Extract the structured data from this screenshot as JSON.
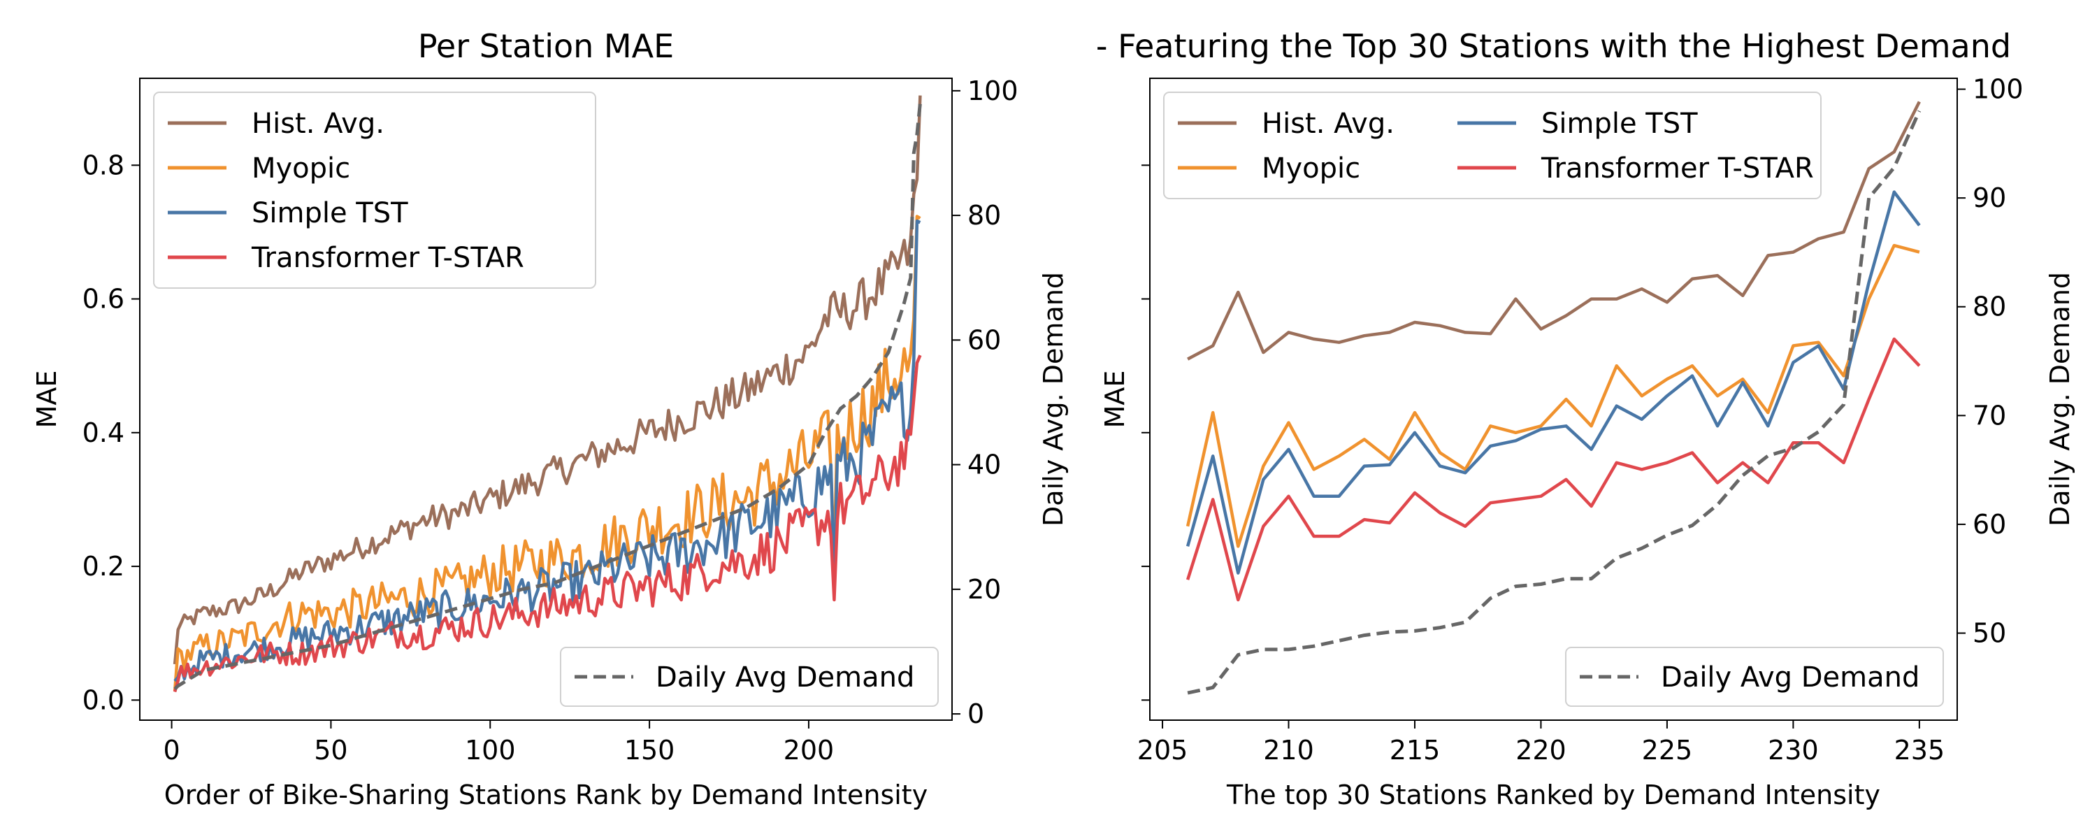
{
  "chart_data": [
    {
      "type": "line",
      "title": "Per Station MAE",
      "xlabel": "Order of Bike-Sharing Stations Rank by Demand Intensity",
      "ylabel": "MAE",
      "ylabel_right": "Daily Avg. Demand",
      "xlim": [
        -10,
        245
      ],
      "ylim": [
        -0.03,
        0.93
      ],
      "ylim_right": [
        -1,
        102
      ],
      "xticks": [
        0,
        50,
        100,
        150,
        200
      ],
      "xtick_labels": [
        "0",
        "50",
        "100",
        "150",
        "200"
      ],
      "yticks": [
        0.0,
        0.2,
        0.4,
        0.6,
        0.8
      ],
      "ytick_labels": [
        "0.0",
        "0.2",
        "0.4",
        "0.6",
        "0.8"
      ],
      "yticks_right": [
        0,
        20,
        40,
        60,
        80,
        100
      ],
      "ytick_labels_right": [
        "0",
        "20",
        "40",
        "60",
        "80",
        "100"
      ],
      "legend": {
        "position": "top-left",
        "columns": 1
      },
      "legend_right": {
        "position": "bottom-right"
      },
      "anchors": {
        "x": [
          1,
          2,
          10,
          20,
          30,
          40,
          50,
          60,
          70,
          80,
          90,
          100,
          110,
          120,
          130,
          140,
          150,
          160,
          170,
          180,
          190,
          200,
          205,
          210,
          215,
          220,
          225,
          230,
          232,
          233,
          234,
          235
        ],
        "series": [
          {
            "name": "Hist. Avg.",
            "color": "#9b6f5a",
            "noise": 0.012,
            "values": [
              0.05,
              0.11,
              0.13,
              0.14,
              0.16,
              0.19,
              0.21,
              0.23,
              0.25,
              0.27,
              0.28,
              0.3,
              0.32,
              0.34,
              0.36,
              0.38,
              0.4,
              0.42,
              0.44,
              0.46,
              0.49,
              0.52,
              0.57,
              0.58,
              0.59,
              0.61,
              0.63,
              0.66,
              0.67,
              0.75,
              0.77,
              0.9
            ]
          },
          {
            "name": "Myopic",
            "color": "#f0922e",
            "noise": 0.02,
            "values": [
              0.03,
              0.06,
              0.08,
              0.09,
              0.11,
              0.13,
              0.13,
              0.14,
              0.15,
              0.16,
              0.17,
              0.19,
              0.2,
              0.21,
              0.22,
              0.24,
              0.26,
              0.27,
              0.29,
              0.3,
              0.33,
              0.36,
              0.38,
              0.39,
              0.42,
              0.44,
              0.48,
              0.5,
              0.49,
              0.55,
              0.7,
              0.67
            ]
          },
          {
            "name": "Simple TST",
            "color": "#4876a6",
            "noise": 0.016,
            "values": [
              0.02,
              0.04,
              0.06,
              0.07,
              0.08,
              0.09,
              0.1,
              0.11,
              0.12,
              0.13,
              0.14,
              0.15,
              0.16,
              0.17,
              0.18,
              0.2,
              0.21,
              0.22,
              0.24,
              0.26,
              0.28,
              0.31,
              0.33,
              0.35,
              0.36,
              0.39,
              0.43,
              0.44,
              0.43,
              0.51,
              0.76,
              0.71
            ]
          },
          {
            "name": "Transformer T-STAR",
            "color": "#e0474c",
            "noise": 0.014,
            "values": [
              0.02,
              0.04,
              0.05,
              0.06,
              0.07,
              0.07,
              0.08,
              0.09,
              0.1,
              0.1,
              0.11,
              0.12,
              0.13,
              0.14,
              0.15,
              0.16,
              0.17,
              0.18,
              0.2,
              0.21,
              0.23,
              0.26,
              0.27,
              0.29,
              0.3,
              0.32,
              0.34,
              0.37,
              0.36,
              0.44,
              0.54,
              0.49
            ]
          },
          {
            "name": "Daily Avg Demand",
            "color": "#666666",
            "dashed": true,
            "axis": "right",
            "noise": 0,
            "values": [
              4,
              4.5,
              7,
              8,
              9,
              10,
              11,
              12.5,
              14,
              15.5,
              17,
              18.5,
              20,
              21,
              23,
              25,
              27,
              29,
              31,
              33,
              36,
              40,
              45,
              49,
              51,
              54,
              58,
              66,
              70,
              90,
              93,
              98
            ]
          }
        ]
      },
      "spikes": [
        {
          "series": "Hist. Avg.",
          "x": 208,
          "value": 0.61
        },
        {
          "series": "Myopic",
          "x": 208,
          "value": 0.21
        },
        {
          "series": "Simple TST",
          "x": 208,
          "value": 0.17
        },
        {
          "series": "Transformer T-STAR",
          "x": 208,
          "value": 0.15
        }
      ]
    },
    {
      "type": "line",
      "title": "- Featuring the Top 30 Stations with the Highest Demand",
      "xlabel": "The top 30 Stations Ranked by Demand Intensity",
      "ylabel": "MAE",
      "ylabel_right": "Daily Avg. Demand",
      "xlim": [
        204.5,
        236.5
      ],
      "ylim": [
        -0.03,
        0.93
      ],
      "ylim_right": [
        42,
        101
      ],
      "xticks": [
        205,
        210,
        215,
        220,
        225,
        230,
        235
      ],
      "xtick_labels": [
        "205",
        "210",
        "215",
        "220",
        "225",
        "230",
        "235"
      ],
      "yticks": [
        0.0,
        0.2,
        0.4,
        0.6,
        0.8
      ],
      "ytick_labels": [],
      "yticks_right": [
        50,
        60,
        70,
        80,
        90,
        100
      ],
      "ytick_labels_right": [
        "50",
        "60",
        "70",
        "80",
        "90",
        "100"
      ],
      "legend": {
        "position": "top-left",
        "columns": 2
      },
      "legend_right": {
        "position": "bottom-right"
      },
      "x": [
        206,
        207,
        208,
        209,
        210,
        211,
        212,
        213,
        214,
        215,
        216,
        217,
        218,
        219,
        220,
        221,
        222,
        223,
        224,
        225,
        226,
        227,
        228,
        229,
        230,
        231,
        232,
        233,
        234,
        235
      ],
      "series": [
        {
          "name": "Hist. Avg.",
          "color": "#9b6f5a",
          "values": [
            0.51,
            0.53,
            0.61,
            0.52,
            0.55,
            0.54,
            0.535,
            0.545,
            0.55,
            0.565,
            0.56,
            0.55,
            0.548,
            0.6,
            0.555,
            0.575,
            0.6,
            0.6,
            0.615,
            0.595,
            0.63,
            0.635,
            0.605,
            0.665,
            0.67,
            0.69,
            0.7,
            0.795,
            0.82,
            0.895
          ]
        },
        {
          "name": "Myopic",
          "color": "#f0922e",
          "values": [
            0.26,
            0.43,
            0.23,
            0.35,
            0.415,
            0.345,
            0.365,
            0.39,
            0.36,
            0.43,
            0.37,
            0.345,
            0.41,
            0.4,
            0.41,
            0.45,
            0.41,
            0.5,
            0.455,
            0.48,
            0.5,
            0.455,
            0.48,
            0.43,
            0.53,
            0.535,
            0.485,
            0.6,
            0.68,
            0.67
          ]
        },
        {
          "name": "Simple TST",
          "color": "#4876a6",
          "values": [
            0.23,
            0.365,
            0.19,
            0.33,
            0.375,
            0.305,
            0.305,
            0.35,
            0.352,
            0.4,
            0.35,
            0.34,
            0.38,
            0.388,
            0.405,
            0.41,
            0.375,
            0.44,
            0.42,
            0.455,
            0.485,
            0.41,
            0.475,
            0.41,
            0.505,
            0.53,
            0.465,
            0.625,
            0.76,
            0.71
          ]
        },
        {
          "name": "Transformer T-STAR",
          "color": "#e0474c",
          "values": [
            0.18,
            0.3,
            0.15,
            0.26,
            0.305,
            0.245,
            0.245,
            0.27,
            0.265,
            0.31,
            0.28,
            0.26,
            0.295,
            0.3,
            0.305,
            0.33,
            0.29,
            0.355,
            0.345,
            0.355,
            0.37,
            0.325,
            0.355,
            0.325,
            0.385,
            0.385,
            0.355,
            0.45,
            0.54,
            0.5
          ]
        },
        {
          "name": "Daily Avg Demand",
          "color": "#666666",
          "dashed": true,
          "axis": "right",
          "values": [
            44.5,
            45,
            48,
            48.5,
            48.5,
            48.8,
            49.3,
            49.8,
            50.1,
            50.2,
            50.5,
            51,
            53.2,
            54.3,
            54.5,
            55,
            55,
            56.9,
            57.8,
            59,
            59.9,
            61.8,
            64.5,
            66.3,
            67,
            68.5,
            71,
            90,
            92.8,
            98
          ]
        }
      ]
    }
  ]
}
